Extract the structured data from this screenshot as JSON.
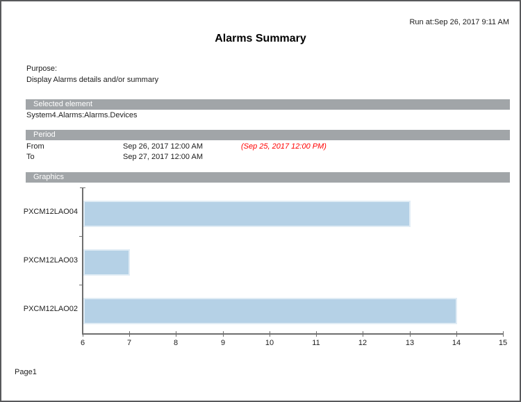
{
  "header": {
    "run_at": "Run at:Sep 26, 2017 9:11 AM",
    "title": "Alarms Summary"
  },
  "purpose": {
    "label": "Purpose:",
    "text": "Display Alarms details and/or summary"
  },
  "sections": {
    "selected_element": {
      "header": "Selected element",
      "value": "System4.Alarms:Alarms.Devices"
    },
    "period": {
      "header": "Period",
      "rows": [
        {
          "label": "From",
          "value": "Sep 26, 2017 12:00 AM",
          "note": "(Sep 25, 2017 12:00 PM)"
        },
        {
          "label": "To",
          "value": "Sep 27, 2017 12:00 AM",
          "note": ""
        }
      ]
    },
    "graphics": {
      "header": "Graphics"
    }
  },
  "footer": {
    "page_label": "Page1"
  },
  "colors": {
    "section_bar": "#a1a5a8",
    "bar_fill": "#b5d1e6",
    "bar_border": "#e0ecf5",
    "note_red": "#ff0000",
    "axis_gray": "#6e6e6e",
    "page_border": "#58595b"
  },
  "chart_data": {
    "type": "bar",
    "orientation": "horizontal",
    "title": "",
    "xlabel": "",
    "ylabel": "",
    "categories": [
      "PXCM12LAO04",
      "PXCM12LAO03",
      "PXCM12LAO02"
    ],
    "values": [
      13,
      7,
      14
    ],
    "xlim": [
      6,
      15
    ],
    "xticks": [
      6,
      7,
      8,
      9,
      10,
      11,
      12,
      13,
      14,
      15
    ],
    "grid": false,
    "legend": false
  }
}
